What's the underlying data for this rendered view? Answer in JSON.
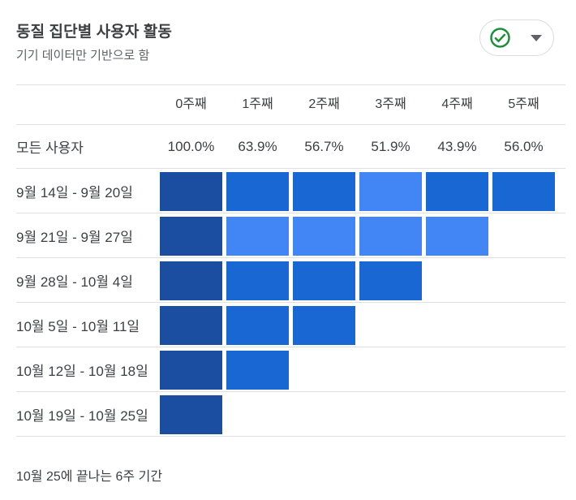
{
  "header": {
    "title": "동질 집단별 사용자 활동",
    "subtitle": "기기 데이터만 기반으로 함",
    "status_button": {
      "icon": "check-circle-icon",
      "icon_color": "#1e8e3e",
      "caret_icon": "chevron-down-icon"
    }
  },
  "colors": {
    "dark": "#1b4da1",
    "medium": "#1967d2",
    "light": "#4285f4",
    "divider": "#e0e0e0"
  },
  "chart_data": {
    "type": "heatmap",
    "title": "동질 집단별 사용자 활동",
    "subtitle": "기기 데이터만 기반으로 함",
    "columns": [
      "0주째",
      "1주째",
      "2주째",
      "3주째",
      "4주째",
      "5주째"
    ],
    "summary_row": {
      "label": "모든 사용자",
      "values": [
        "100.0%",
        "63.9%",
        "56.7%",
        "51.9%",
        "43.9%",
        "56.0%"
      ],
      "values_pct": [
        100.0,
        63.9,
        56.7,
        51.9,
        43.9,
        56.0
      ]
    },
    "rows": [
      {
        "label": "9월 14일 - 9월 20일",
        "cell_levels": [
          "dark",
          "medium",
          "medium",
          "light",
          "medium",
          "medium"
        ]
      },
      {
        "label": "9월 21일 - 9월 27일",
        "cell_levels": [
          "dark",
          "light",
          "light",
          "light",
          "light"
        ]
      },
      {
        "label": "9월 28일 - 10월 4일",
        "cell_levels": [
          "dark",
          "medium",
          "medium",
          "medium"
        ]
      },
      {
        "label": "10월 5일 - 10월 11일",
        "cell_levels": [
          "dark",
          "medium",
          "medium"
        ]
      },
      {
        "label": "10월 12일 - 10월 18일",
        "cell_levels": [
          "dark",
          "medium"
        ]
      },
      {
        "label": "10월 19일 - 10월 25일",
        "cell_levels": [
          "dark"
        ]
      }
    ],
    "legend": "cell color encodes user retention intensity: dark = 100% (week 0), medium, light = lower",
    "footnote": "10월 25에 끝나는 6주 기간"
  }
}
